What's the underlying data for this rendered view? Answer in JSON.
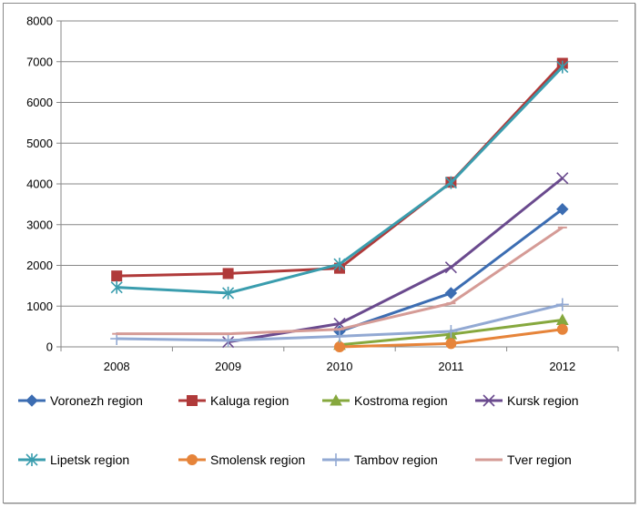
{
  "chart_data": {
    "type": "line",
    "title": "",
    "xlabel": "",
    "ylabel": "",
    "categories": [
      "2008",
      "2009",
      "2010",
      "2011",
      "2012"
    ],
    "ylim": [
      0,
      8000
    ],
    "yticks": [
      0,
      1000,
      2000,
      3000,
      4000,
      5000,
      6000,
      7000,
      8000
    ],
    "grid": true,
    "legend_position": "bottom",
    "series": [
      {
        "name": "Voronezh region",
        "color": "#3C6DB2",
        "marker": "diamond",
        "values": [
          null,
          null,
          380,
          1320,
          3380
        ]
      },
      {
        "name": "Kaluga region",
        "color": "#B03A3A",
        "marker": "square",
        "values": [
          1740,
          1800,
          1930,
          4040,
          6960
        ]
      },
      {
        "name": "Kostroma region",
        "color": "#86A83E",
        "marker": "triangle",
        "values": [
          null,
          null,
          50,
          310,
          660
        ]
      },
      {
        "name": "Kursk region",
        "color": "#6A4A8E",
        "marker": "x",
        "values": [
          null,
          120,
          570,
          1950,
          4140
        ]
      },
      {
        "name": "Lipetsk region",
        "color": "#3A9DAE",
        "marker": "asterisk",
        "values": [
          1460,
          1320,
          2030,
          4030,
          6870
        ]
      },
      {
        "name": "Smolensk region",
        "color": "#E6843A",
        "marker": "circle",
        "values": [
          null,
          null,
          0,
          80,
          430
        ]
      },
      {
        "name": "Tambov region",
        "color": "#92A9D3",
        "marker": "plus",
        "values": [
          200,
          160,
          260,
          380,
          1040
        ]
      },
      {
        "name": "Tver region",
        "color": "#D59B96",
        "marker": "dash",
        "values": [
          320,
          320,
          430,
          1070,
          2930
        ]
      }
    ]
  }
}
